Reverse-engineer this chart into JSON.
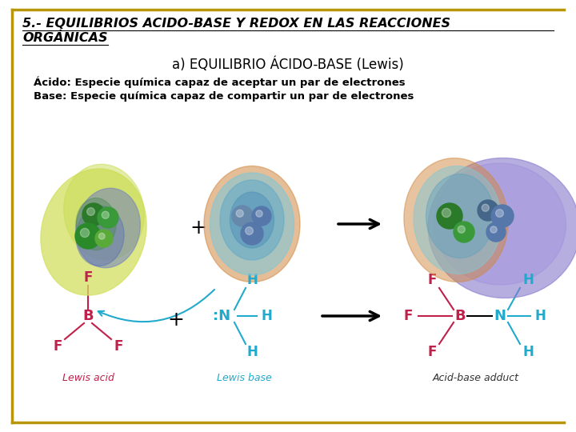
{
  "title_line1": "5.- EQUILIBRIOS ACIDO-BASE Y REDOX EN LAS REACCIONES",
  "title_line2": "ORGÁNICAS",
  "subtitle": "a) EQUILIBRIO ÁCIDO-BASE (Lewis)",
  "def1": "Ácido: Especie química capaz de aceptar un par de electrones",
  "def2": "Base: Especie química capaz de compartir un par de electrones",
  "bg_color": "#ffffff",
  "title_color": "#000000",
  "subtitle_color": "#000000",
  "def_color": "#000000",
  "border_color": "#b8960c",
  "acid_color": "#c0214a",
  "base_color": "#22aacc",
  "adduct_label_color": "#333333",
  "title_fontsize": 11.5,
  "subtitle_fontsize": 12,
  "def_fontsize": 9.5,
  "label_fontsize": 9
}
